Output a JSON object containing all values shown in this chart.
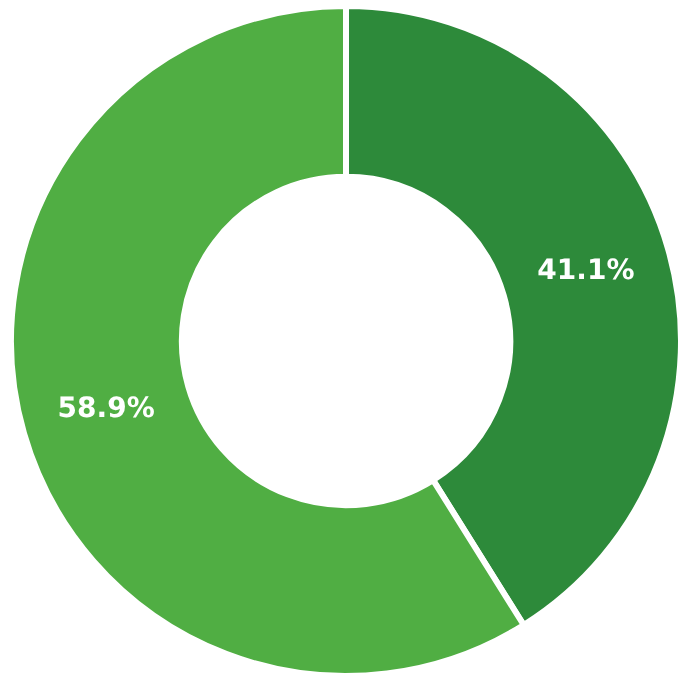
{
  "chart_data": {
    "type": "donut",
    "categories": [
      null,
      null
    ],
    "values": [
      41.1,
      58.9
    ],
    "colors": [
      "#2d8a3a",
      "#50ae43"
    ],
    "value_labels": [
      "41.1%",
      "58.9%"
    ]
  }
}
